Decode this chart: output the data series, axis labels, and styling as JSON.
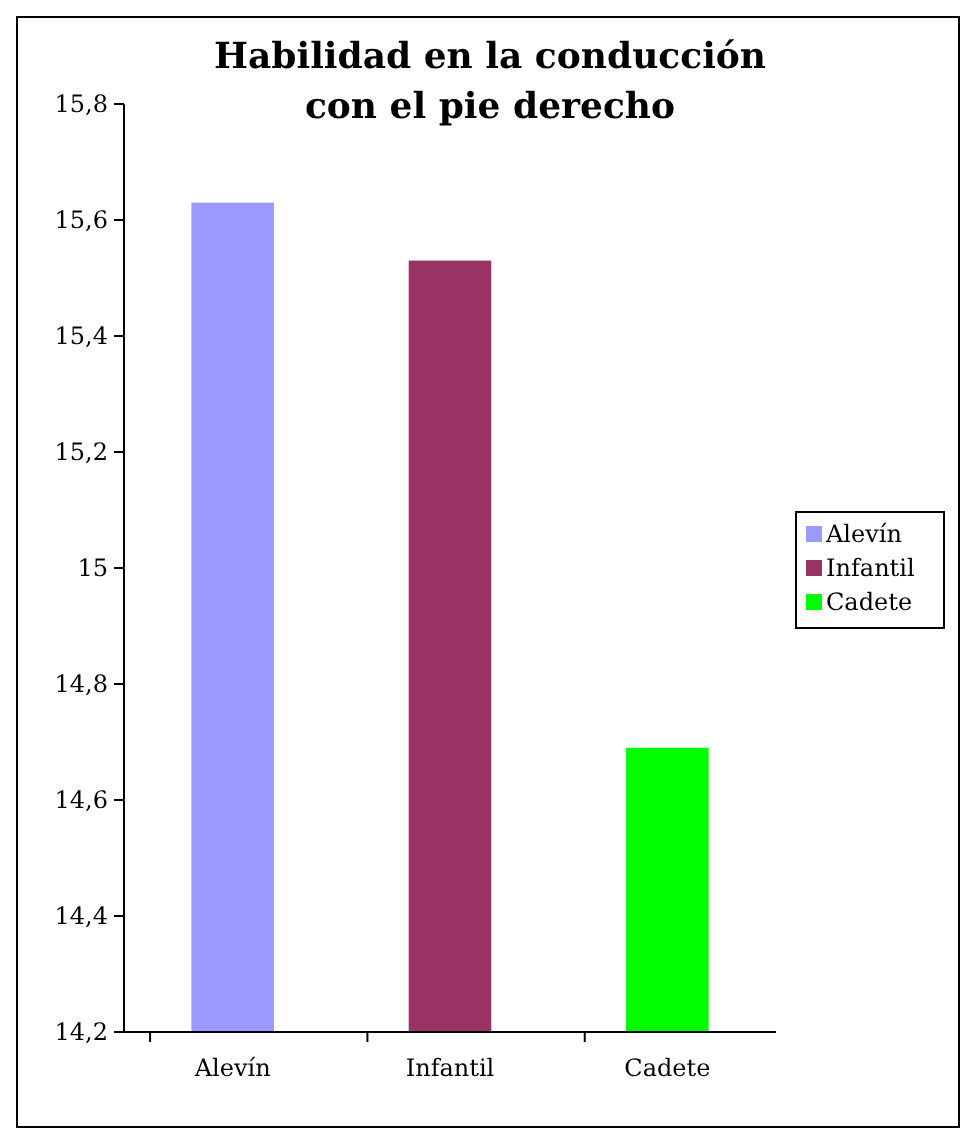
{
  "chart_data": {
    "type": "bar",
    "title": "Habilidad en la conducción con el pie derecho",
    "categories": [
      "Alevín",
      "Infantil",
      "Cadete"
    ],
    "series": [
      {
        "name": "Alevín",
        "color": "#9999ff",
        "values": [
          15.63,
          null,
          null
        ]
      },
      {
        "name": "Infantil",
        "color": "#993366",
        "values": [
          null,
          15.53,
          null
        ]
      },
      {
        "name": "Cadete",
        "color": "#00ff00",
        "values": [
          null,
          null,
          14.69
        ]
      }
    ],
    "ylim": [
      14.2,
      15.8
    ],
    "yticks": [
      {
        "value": 14.2,
        "label": "14,2"
      },
      {
        "value": 14.4,
        "label": "14,4"
      },
      {
        "value": 14.6,
        "label": "14,6"
      },
      {
        "value": 14.8,
        "label": "14,8"
      },
      15,
      {
        "value": 15.2,
        "label": "15,2"
      },
      {
        "value": 15.4,
        "label": "15,4"
      },
      {
        "value": 15.6,
        "label": "15,6"
      },
      {
        "value": 15.8,
        "label": "15,8"
      }
    ],
    "grid": false,
    "legend": "right"
  }
}
